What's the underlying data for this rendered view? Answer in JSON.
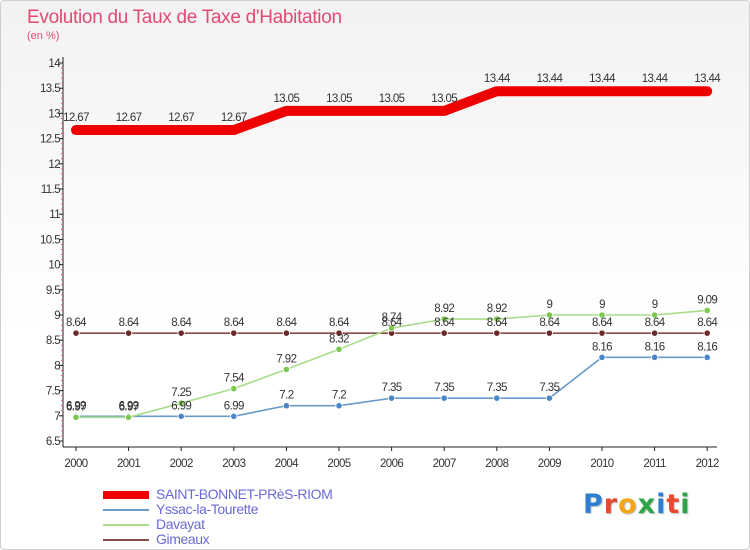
{
  "header": {
    "title": "Evolution du Taux de Taxe d'Habitation",
    "unit": "(en %)"
  },
  "logo": {
    "text": "Proxiti",
    "letters": [
      {
        "ch": "P",
        "color": "#2e7fd0"
      },
      {
        "ch": "r",
        "color": "#e8482f"
      },
      {
        "ch": "o",
        "color": "#f2a618"
      },
      {
        "ch": "x",
        "color": "#2ea34a"
      },
      {
        "ch": "i",
        "color": "#2e7fd0"
      },
      {
        "ch": "t",
        "color": "#e8482f"
      },
      {
        "ch": "i",
        "color": "#2ea34a"
      }
    ]
  },
  "chart_data": {
    "type": "line",
    "title": "Evolution du Taux de Taxe d'Habitation",
    "ylabel": "(en %)",
    "xlabel": "",
    "grid": false,
    "legend_position": "bottom-left",
    "categories": [
      "2000",
      "2001",
      "2002",
      "2003",
      "2004",
      "2005",
      "2006",
      "2007",
      "2008",
      "2009",
      "2010",
      "2011",
      "2012"
    ],
    "ylim": [
      6.5,
      14
    ],
    "yticks": [
      "6.5",
      "7",
      "7.5",
      "8",
      "8.5",
      "9",
      "9.5",
      "10",
      "10.5",
      "11",
      "11.5",
      "12",
      "12.5",
      "13",
      "13.5",
      "14"
    ],
    "series": [
      {
        "name": "SAINT-BONNET-PRèS-RIOM",
        "color": "#ee0000",
        "thick": true,
        "values": [
          12.67,
          12.67,
          12.67,
          12.67,
          13.05,
          13.05,
          13.05,
          13.05,
          13.44,
          13.44,
          13.44,
          13.44,
          13.44
        ],
        "labels": [
          "12.67",
          "12.67",
          "12.67",
          "12.67",
          "13.05",
          "13.05",
          "13.05",
          "13.05",
          "13.44",
          "13.44",
          "13.44",
          "13.44",
          "13.44"
        ]
      },
      {
        "name": "Yssac-la-Tourette",
        "color": "#6a9ac8",
        "marker": "#4a86c8",
        "values": [
          6.99,
          6.99,
          6.99,
          6.99,
          7.2,
          7.2,
          7.35,
          7.35,
          7.35,
          7.35,
          8.16,
          8.16,
          8.16
        ],
        "labels": [
          "6.99",
          "6.99",
          "6.99",
          "6.99",
          "7.2",
          "7.2",
          "7.35",
          "7.35",
          "7.35",
          "7.35",
          "8.16",
          "8.16",
          "8.16"
        ]
      },
      {
        "name": "Davayat",
        "color": "#a8dc8a",
        "marker": "#7cc850",
        "values": [
          6.97,
          6.97,
          7.25,
          7.54,
          7.92,
          8.32,
          8.74,
          8.92,
          8.92,
          9,
          9,
          9,
          9.09
        ],
        "labels": [
          "6.97",
          "6.97",
          "7.25",
          "7.54",
          "7.92",
          "8.32",
          "8.74",
          "8.92",
          "8.92",
          "9",
          "9",
          "9",
          "9.09"
        ]
      },
      {
        "name": "Gimeaux",
        "color": "#8a4a4a",
        "marker": "#6a2a2a",
        "values": [
          8.64,
          8.64,
          8.64,
          8.64,
          8.64,
          8.64,
          8.64,
          8.64,
          8.64,
          8.64,
          8.64,
          8.64,
          8.64
        ],
        "labels": [
          "8.64",
          "8.64",
          "8.64",
          "8.64",
          "8.64",
          "8.64",
          "8.64",
          "8.64",
          "8.64",
          "8.64",
          "8.64",
          "8.64",
          "8.64"
        ]
      }
    ]
  }
}
